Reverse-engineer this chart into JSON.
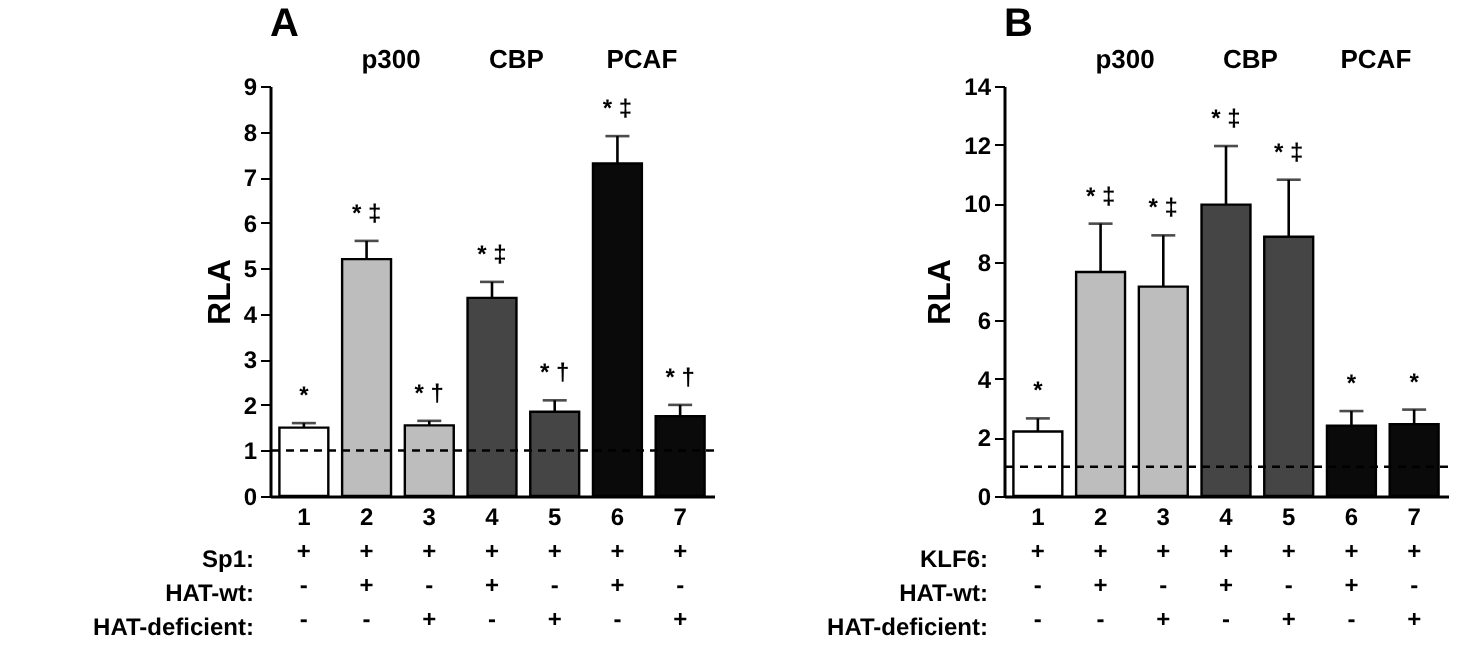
{
  "chart_data": [
    {
      "type": "bar",
      "title": "A",
      "ylabel": "RLA",
      "categories": [
        "1\n+\n-\n-",
        "2\n+\n+\n-",
        "3\n+\n-\n+",
        "4\n+\n+\n-",
        "5\n+\n-\n+",
        "6\n+\n+\n-",
        "7\n+\n-\n+"
      ],
      "values": [
        1.5,
        5.2,
        1.55,
        4.35,
        1.85,
        7.3,
        1.75
      ],
      "errors": [
        [
          1.5,
          1.6
        ],
        [
          5.2,
          5.6
        ],
        [
          1.55,
          1.65
        ],
        [
          4.35,
          4.7
        ],
        [
          1.85,
          2.1
        ],
        [
          7.3,
          7.9
        ],
        [
          1.75,
          2.0
        ]
      ],
      "colors": [
        "#ffffff",
        "#bdbdbd",
        "#bdbdbd",
        "#454545",
        "#454545",
        "#0a0a0a",
        "#0a0a0a"
      ],
      "ylim": [
        0,
        9
      ],
      "yticks": [
        0,
        1,
        2,
        3,
        4,
        5,
        6,
        7,
        8,
        9
      ],
      "grid": false,
      "ref_lines": [
        {
          "axis": "y",
          "value": 1,
          "line_style": "dashed"
        }
      ],
      "annotations": [
        "p300",
        "CBP",
        "PCAF",
        "Sp1:",
        "HAT-wt:",
        "HAT-deficient:",
        "*",
        "* ‡",
        "* †",
        "* ‡",
        "* †",
        "* ‡",
        "* †"
      ]
    },
    {
      "type": "bar",
      "title": "B",
      "ylabel": "RLA",
      "categories": [
        "1\n+\n-\n-",
        "2\n+\n+\n-",
        "3\n+\n-\n+",
        "4\n+\n+\n-",
        "5\n+\n-\n+",
        "6\n+\n+\n-",
        "7\n+\n-\n+"
      ],
      "values": [
        2.2,
        7.65,
        7.15,
        9.95,
        8.85,
        2.4,
        2.45
      ],
      "errors": [
        [
          2.2,
          2.65
        ],
        [
          7.65,
          9.3
        ],
        [
          7.15,
          8.9
        ],
        [
          9.95,
          11.95
        ],
        [
          8.85,
          10.8
        ],
        [
          2.4,
          2.9
        ],
        [
          2.45,
          2.95
        ]
      ],
      "colors": [
        "#ffffff",
        "#bdbdbd",
        "#bdbdbd",
        "#454545",
        "#454545",
        "#0a0a0a",
        "#0a0a0a"
      ],
      "ylim": [
        0,
        14
      ],
      "yticks": [
        0,
        2,
        4,
        6,
        8,
        10,
        12,
        14
      ],
      "grid": false,
      "ref_lines": [
        {
          "axis": "y",
          "value": 1,
          "line_style": "dashed"
        }
      ],
      "annotations": [
        "p300",
        "CBP",
        "PCAF",
        "KLF6:",
        "HAT-wt:",
        "HAT-deficient:",
        "*",
        "* ‡",
        "* ‡",
        "* ‡",
        "* ‡",
        "*",
        "*"
      ]
    }
  ]
}
